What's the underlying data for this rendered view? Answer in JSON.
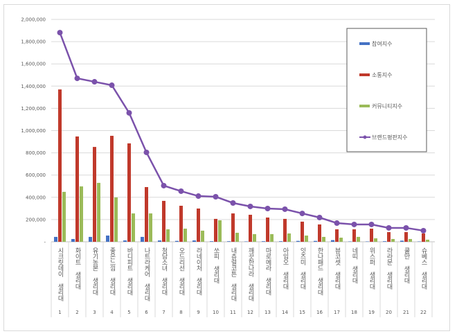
{
  "chart_data": {
    "type": "bar",
    "title": "",
    "xlabel": "",
    "ylabel": "",
    "ylim": [
      0,
      2000000
    ],
    "yticks": [
      "-",
      "200,000",
      "400,000",
      "600,000",
      "800,000",
      "1,000,000",
      "1,200,000",
      "1,400,000",
      "1,600,000",
      "1,800,000",
      "2,000,000"
    ],
    "grid": true,
    "legend_position": "top-right",
    "categories": [
      "시크릿데이 생리대",
      "화이트 생리대",
      "유기농본 생리대",
      "좋은느낌 생리대",
      "바디피트 생리대",
      "나트라케어 생리대",
      "청담소녀 생리대",
      "오드리선 생리대",
      "라네이처 생리대",
      "쏘피 생리대",
      "내츄럴코튼 생리대",
      "깨끗한나라 생리대",
      "마로메라 생리대",
      "아임오 생리대",
      "잇츠미 생리대",
      "한나패드 생리대",
      "뷰코셋 생리대",
      "네띠 생리대",
      "위스퍼 생리대",
      "라라문 생리대",
      "쿨만 생리대",
      "슈베스 생리대"
    ],
    "ranks": [
      "1",
      "2",
      "3",
      "4",
      "5",
      "6",
      "7",
      "8",
      "9",
      "10",
      "11",
      "12",
      "13",
      "14",
      "15",
      "16",
      "17",
      "18",
      "19",
      "20",
      "21",
      "22"
    ],
    "series": [
      {
        "name": "참여지수",
        "type": "bar",
        "color": "#4472c4",
        "values": [
          44000,
          25000,
          44000,
          56000,
          12000,
          44000,
          12000,
          8000,
          12000,
          5000,
          5000,
          3000,
          5000,
          5000,
          8000,
          8000,
          15000,
          3000,
          3000,
          5000,
          10000,
          3000
        ]
      },
      {
        "name": "소통지수",
        "type": "bar",
        "color": "#c0392b",
        "values": [
          1370000,
          947000,
          853000,
          953000,
          885000,
          492000,
          368000,
          324000,
          299000,
          206000,
          255000,
          243000,
          218000,
          206000,
          181000,
          156000,
          112000,
          112000,
          118000,
          87000,
          87000,
          75000
        ]
      },
      {
        "name": "커뮤니티지수",
        "type": "bar",
        "color": "#9bbb59",
        "values": [
          449000,
          498000,
          530000,
          399000,
          255000,
          255000,
          112000,
          118000,
          100000,
          193000,
          81000,
          69000,
          69000,
          75000,
          56000,
          44000,
          37000,
          44000,
          31000,
          25000,
          25000,
          19000
        ]
      },
      {
        "name": "브랜드평판지수",
        "type": "line",
        "color": "#7b52ab",
        "values": [
          1881000,
          1470000,
          1439000,
          1408000,
          1159000,
          804000,
          505000,
          455000,
          411000,
          405000,
          349000,
          318000,
          299000,
          293000,
          255000,
          218000,
          168000,
          156000,
          156000,
          125000,
          125000,
          100000
        ]
      }
    ]
  }
}
